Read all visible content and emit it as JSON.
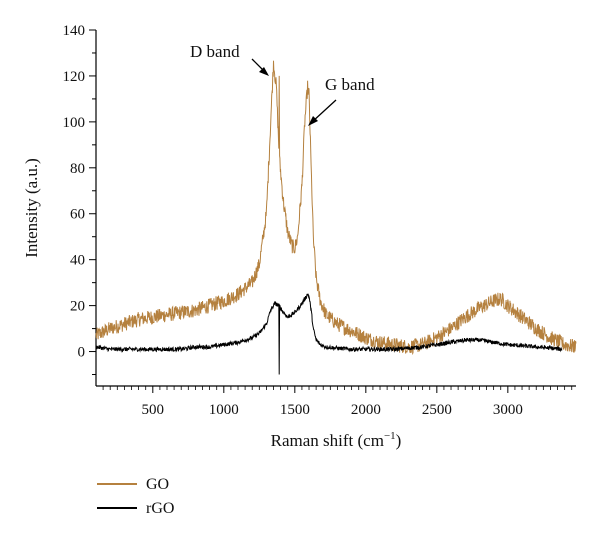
{
  "chart_data": {
    "type": "line",
    "title": "",
    "xlabel": "Raman shift (cm",
    "xlabel_sup": "−1",
    "xlabel_close": ")",
    "ylabel": "Intensity (a.u.)",
    "xlim": [
      100,
      3480
    ],
    "ylim": [
      -15,
      140
    ],
    "x_ticks": [
      500,
      1000,
      1500,
      2000,
      2500,
      3000
    ],
    "y_ticks": [
      0,
      20,
      40,
      60,
      80,
      100,
      120,
      140
    ],
    "grid": false,
    "legend_position": "below",
    "colors": {
      "GO": "#B5813F",
      "rGO": "#000000"
    },
    "annotations": [
      {
        "text": "D band",
        "x": 1350,
        "y": 122
      },
      {
        "text": "G band",
        "x": 1600,
        "y": 110
      }
    ],
    "series": [
      {
        "name": "GO",
        "x": [
          100,
          200,
          300,
          400,
          500,
          600,
          700,
          800,
          900,
          1000,
          1100,
          1200,
          1250,
          1300,
          1330,
          1350,
          1370,
          1390,
          1420,
          1450,
          1480,
          1500,
          1520,
          1550,
          1570,
          1590,
          1600,
          1615,
          1630,
          1650,
          1680,
          1720,
          1800,
          1900,
          2000,
          2100,
          2200,
          2300,
          2400,
          2500,
          2600,
          2700,
          2800,
          2900,
          2950,
          3000,
          3100,
          3200,
          3300,
          3400,
          3480
        ],
        "y": [
          7,
          10,
          12,
          14,
          15,
          16,
          17,
          18,
          20,
          22,
          25,
          30,
          38,
          60,
          100,
          126,
          115,
          85,
          65,
          52,
          46,
          45,
          50,
          72,
          100,
          115,
          112,
          80,
          50,
          32,
          22,
          16,
          12,
          9,
          6,
          4,
          3,
          2,
          3,
          6,
          10,
          15,
          19,
          22,
          23,
          20,
          15,
          10,
          6,
          3,
          2
        ]
      },
      {
        "name": "rGO",
        "x": [
          100,
          200,
          300,
          400,
          500,
          600,
          700,
          800,
          900,
          1000,
          1100,
          1200,
          1250,
          1300,
          1330,
          1360,
          1390,
          1420,
          1450,
          1500,
          1540,
          1570,
          1590,
          1600,
          1615,
          1630,
          1650,
          1680,
          1720,
          1800,
          1900,
          2000,
          2100,
          2200,
          2300,
          2400,
          2500,
          2600,
          2700,
          2800,
          2900,
          3000,
          3100,
          3200,
          3300,
          3380
        ],
        "y": [
          2,
          1,
          1,
          1,
          1,
          1,
          1,
          2,
          2,
          3,
          4,
          6,
          8,
          12,
          18,
          21,
          20,
          17,
          15,
          17,
          20,
          23,
          25,
          24,
          18,
          10,
          5,
          3,
          2,
          1.5,
          1,
          1,
          1,
          1,
          1.5,
          2,
          3,
          4,
          5,
          5,
          4,
          3,
          2.5,
          2,
          1.5,
          1
        ]
      }
    ]
  }
}
